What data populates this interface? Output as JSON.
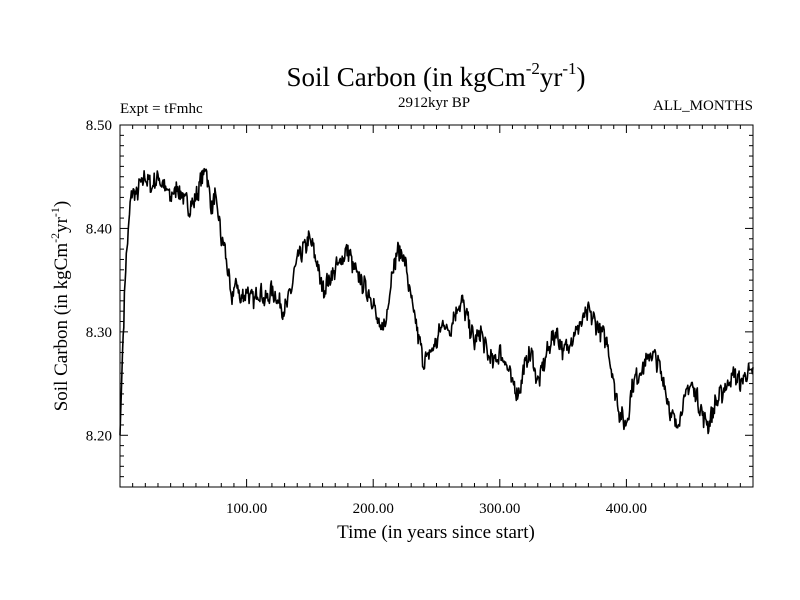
{
  "chart_data": {
    "type": "line",
    "title": {
      "main": "Soil Carbon (in kgCm",
      "sup1": "-2",
      "mid": "yr",
      "sup2": "-1",
      "end": ")"
    },
    "subtitle": "2912kyr BP",
    "left_label": "Expt = tFmhc",
    "right_label": "ALL_MONTHS",
    "xlabel": "Time (in years since start)",
    "ylabel": {
      "main": "Soil Carbon (in kgCm",
      "sup1": "-2",
      "mid": "yr",
      "sup2": "-1",
      "end": ")"
    },
    "xlim": [
      0,
      500
    ],
    "ylim": [
      8.15,
      8.5
    ],
    "xticks": [
      100,
      200,
      300,
      400
    ],
    "xtick_labels": [
      "100.00",
      "200.00",
      "300.00",
      "400.00"
    ],
    "yticks": [
      8.2,
      8.3,
      8.4,
      8.5
    ],
    "ytick_labels": [
      "8.20",
      "8.30",
      "8.40",
      "8.50"
    ],
    "grid": false,
    "series": [
      {
        "name": "Soil Carbon",
        "color": "#000000",
        "x": [
          0,
          2,
          4,
          6,
          8,
          10,
          12,
          15,
          20,
          25,
          30,
          35,
          40,
          45,
          50,
          55,
          60,
          65,
          68,
          70,
          72,
          75,
          78,
          80,
          83,
          86,
          88,
          90,
          92,
          95,
          100,
          105,
          110,
          115,
          120,
          125,
          130,
          135,
          140,
          145,
          150,
          155,
          160,
          165,
          170,
          175,
          180,
          185,
          190,
          195,
          200,
          205,
          210,
          215,
          220,
          225,
          230,
          235,
          240,
          245,
          250,
          255,
          260,
          265,
          270,
          275,
          280,
          285,
          290,
          295,
          300,
          305,
          310,
          315,
          320,
          325,
          330,
          335,
          340,
          345,
          350,
          355,
          360,
          365,
          370,
          375,
          380,
          385,
          390,
          395,
          400,
          405,
          410,
          415,
          420,
          425,
          430,
          435,
          440,
          445,
          450,
          455,
          460,
          465,
          470,
          475,
          480,
          485,
          490,
          495,
          500
        ],
        "y": [
          8.2,
          8.28,
          8.35,
          8.39,
          8.42,
          8.44,
          8.43,
          8.44,
          8.45,
          8.44,
          8.45,
          8.44,
          8.43,
          8.44,
          8.43,
          8.42,
          8.43,
          8.45,
          8.46,
          8.44,
          8.42,
          8.43,
          8.41,
          8.39,
          8.38,
          8.35,
          8.33,
          8.34,
          8.35,
          8.33,
          8.34,
          8.33,
          8.34,
          8.33,
          8.34,
          8.33,
          8.32,
          8.34,
          8.37,
          8.38,
          8.39,
          8.37,
          8.34,
          8.35,
          8.36,
          8.37,
          8.38,
          8.36,
          8.35,
          8.34,
          8.33,
          8.3,
          8.31,
          8.36,
          8.38,
          8.37,
          8.33,
          8.3,
          8.27,
          8.28,
          8.29,
          8.31,
          8.3,
          8.32,
          8.33,
          8.31,
          8.29,
          8.3,
          8.28,
          8.27,
          8.28,
          8.27,
          8.25,
          8.24,
          8.27,
          8.28,
          8.25,
          8.27,
          8.29,
          8.3,
          8.28,
          8.29,
          8.3,
          8.31,
          8.32,
          8.31,
          8.3,
          8.29,
          8.25,
          8.22,
          8.21,
          8.25,
          8.26,
          8.27,
          8.28,
          8.27,
          8.25,
          8.22,
          8.21,
          8.23,
          8.25,
          8.24,
          8.22,
          8.21,
          8.23,
          8.24,
          8.25,
          8.26,
          8.25,
          8.26,
          8.26
        ]
      }
    ]
  }
}
